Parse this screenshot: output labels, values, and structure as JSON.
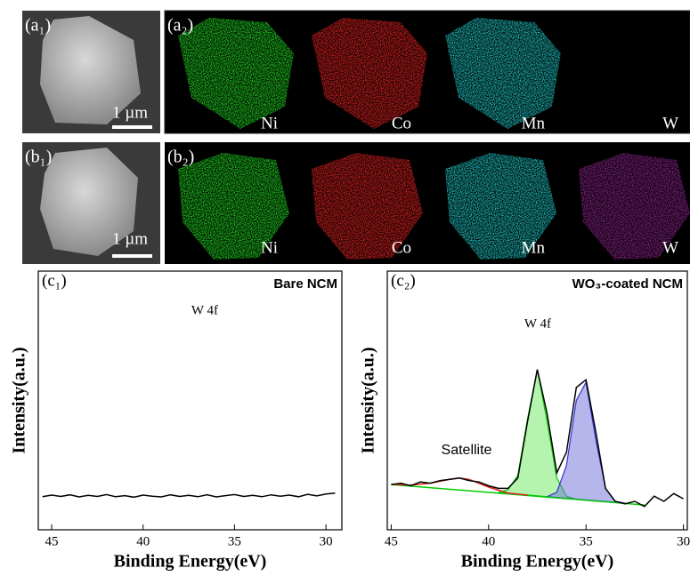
{
  "figure": {
    "panels": {
      "a1": "(a₁)",
      "a2": "(a₂)",
      "b1": "(b₁)",
      "b2": "(b₂)"
    },
    "scale_bar": "1 µm",
    "elements": [
      "Ni",
      "Co",
      "Mn",
      "W"
    ]
  },
  "chart_data": [
    {
      "type": "line",
      "panel_label": "(c₁)",
      "title": "Bare NCM",
      "annotations": [
        "W 4f"
      ],
      "xlabel": "Binding Energy(eV)",
      "ylabel": "Intensity(a.u.)",
      "xlim": [
        45.73,
        29.13
      ],
      "xticks": [
        45,
        40,
        35,
        30
      ],
      "ylim": [
        0,
        100
      ],
      "series": [
        {
          "color": "#000000",
          "x": [
            45.5,
            45,
            44.5,
            44,
            43.5,
            43,
            42.5,
            42,
            41.5,
            41,
            40.5,
            40,
            39.5,
            39,
            38.5,
            38,
            37.5,
            37,
            36.5,
            36,
            35.5,
            35,
            34.5,
            34,
            33.5,
            33,
            32.5,
            32,
            31.5,
            31,
            30.5,
            30,
            29.5
          ],
          "values": [
            12.8,
            13.4,
            12.9,
            13.5,
            12.7,
            13.3,
            12.9,
            13.6,
            12.8,
            13.2,
            12.6,
            13.4,
            13.0,
            12.7,
            13.5,
            12.9,
            13.3,
            12.8,
            13.5,
            12.7,
            13.2,
            13.6,
            12.9,
            13.3,
            12.8,
            13.5,
            13.0,
            13.4,
            12.8,
            13.7,
            13.1,
            13.8,
            14.2
          ]
        }
      ]
    },
    {
      "type": "line",
      "panel_label": "(c₂)",
      "title": "WO₃-coated NCM",
      "annotations": [
        "W 4f",
        "Satellite"
      ],
      "xlabel": "Binding Energy(eV)",
      "ylabel": "Intensity(a.u.)",
      "xlim": [
        45.2,
        29.8
      ],
      "xticks": [
        45,
        40,
        35,
        30
      ],
      "ylim": [
        0,
        100
      ],
      "series": [
        {
          "color": "#00cc00",
          "fill": "rgba(120,235,110,0.55)",
          "x": [
            39.5,
            39,
            38.5,
            38,
            37.5,
            37,
            36.5,
            36,
            35.5
          ],
          "values": [
            14.5,
            15.5,
            21,
            43,
            62,
            42,
            20,
            13,
            11.8
          ]
        },
        {
          "color": "#3333cc",
          "fill": "rgba(110,110,220,0.5)",
          "x": [
            37,
            36.5,
            36,
            35.5,
            35,
            34.5,
            34,
            33.5,
            33
          ],
          "values": [
            12.8,
            14.5,
            25,
            50,
            57,
            35,
            16,
            11,
            10.3
          ]
        },
        {
          "color": "#00cc00",
          "x": [
            45,
            32
          ],
          "values": [
            17.5,
            9.6
          ]
        },
        {
          "color": "#dd2222",
          "x": [
            45,
            44,
            43,
            42,
            41.5,
            41,
            40,
            39,
            38
          ],
          "values": [
            17.6,
            17.3,
            18.0,
            19.5,
            20,
            19.5,
            16.5,
            14.2,
            13.4
          ]
        },
        {
          "color": "#000000",
          "x": [
            45,
            44.5,
            44,
            43.5,
            43,
            42.5,
            42,
            41.5,
            41,
            40.5,
            40,
            39.5,
            39,
            38.5,
            38,
            37.5,
            37,
            36.5,
            36,
            35.5,
            35,
            34.5,
            34,
            33.5,
            33,
            32.5,
            32,
            31.5,
            31,
            30.5,
            30
          ],
          "values": [
            17.5,
            18,
            17,
            18.5,
            18,
            19,
            19.5,
            20,
            19,
            18.5,
            17,
            16,
            16,
            20,
            42,
            62,
            45,
            22,
            30,
            55,
            58,
            38,
            16,
            11,
            10,
            11,
            9,
            13,
            11,
            14,
            12
          ]
        }
      ]
    }
  ]
}
